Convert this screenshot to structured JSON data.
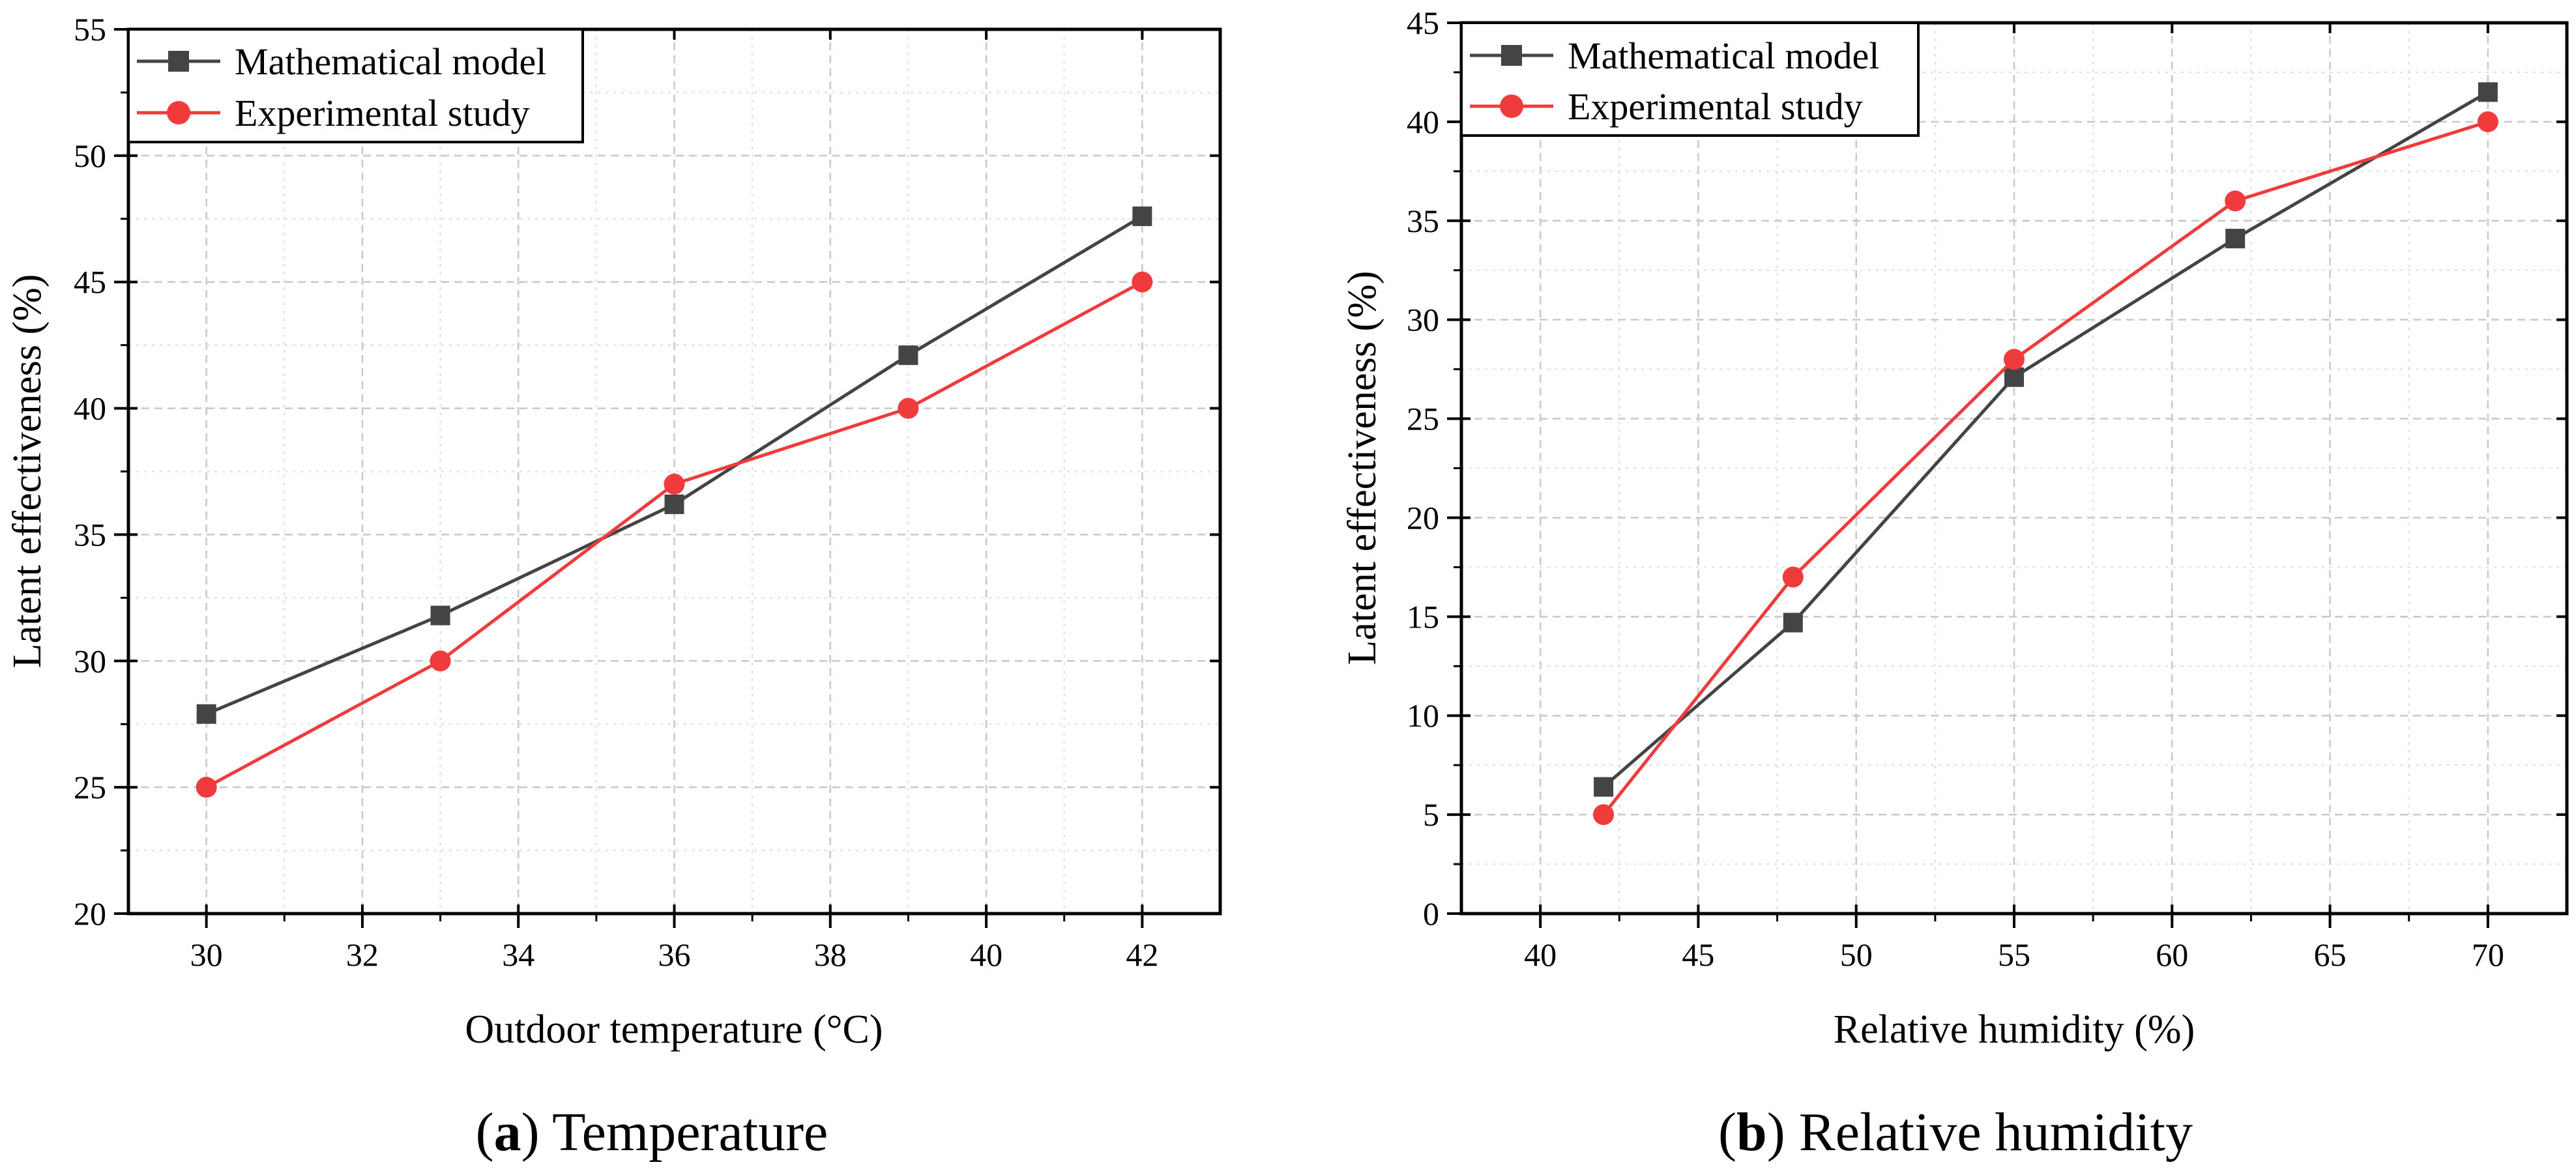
{
  "chart_data": [
    {
      "type": "line",
      "caption": {
        "letter": "a",
        "title": "Temperature"
      },
      "xlabel": "Outdoor temperature (°C)",
      "ylabel": "Latent effectiveness (%)",
      "xlim": [
        29,
        43
      ],
      "ylim": [
        20,
        55
      ],
      "xticks": [
        30,
        32,
        34,
        36,
        38,
        40,
        42
      ],
      "yticks": [
        20,
        25,
        30,
        35,
        40,
        45,
        50,
        55
      ],
      "grid": true,
      "legend_position": "top-left",
      "x": [
        30,
        33,
        36,
        39,
        42
      ],
      "series": [
        {
          "name": "Mathematical model",
          "color": "#444444",
          "marker": "square",
          "values": [
            27.9,
            31.8,
            36.2,
            42.1,
            47.6
          ]
        },
        {
          "name": "Experimental study",
          "color": "#ef3b3b",
          "marker": "circle",
          "values": [
            25,
            30,
            37,
            40,
            45
          ]
        }
      ]
    },
    {
      "type": "line",
      "caption": {
        "letter": "b",
        "title": "Relative humidity"
      },
      "xlabel": "Relative humidity (%)",
      "ylabel": "Latent effectiveness (%)",
      "xlim": [
        37.5,
        72.5
      ],
      "ylim": [
        0,
        45
      ],
      "xticks": [
        40,
        45,
        50,
        55,
        60,
        65,
        70
      ],
      "yticks": [
        0,
        5,
        10,
        15,
        20,
        25,
        30,
        35,
        40,
        45
      ],
      "grid": true,
      "legend_position": "top-left",
      "x": [
        42,
        48,
        55,
        62,
        70
      ],
      "series": [
        {
          "name": "Mathematical model",
          "color": "#444444",
          "marker": "square",
          "values": [
            6.4,
            14.7,
            27.1,
            34.1,
            41.5
          ]
        },
        {
          "name": "Experimental study",
          "color": "#ef3b3b",
          "marker": "circle",
          "values": [
            5,
            17,
            28,
            36,
            40
          ]
        }
      ]
    }
  ]
}
